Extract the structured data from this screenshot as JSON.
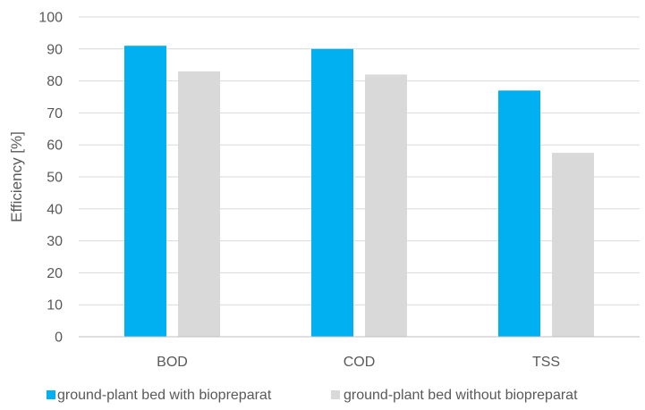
{
  "chart_data": {
    "type": "bar",
    "title": "",
    "xlabel": "",
    "ylabel": "Efficiency [%]",
    "ylim": [
      0,
      100
    ],
    "yticks": [
      0,
      10,
      20,
      30,
      40,
      50,
      60,
      70,
      80,
      90,
      100
    ],
    "grid": true,
    "legend_position": "bottom",
    "categories": [
      "BOD",
      "COD",
      "TSS"
    ],
    "series": [
      {
        "name": "ground-plant bed with biopreparat",
        "color": "#00B0F0",
        "values": [
          91,
          90,
          77
        ]
      },
      {
        "name": "ground-plant bed without biopreparat",
        "color": "#D9D9D9",
        "values": [
          83,
          82,
          57.5
        ]
      }
    ]
  }
}
